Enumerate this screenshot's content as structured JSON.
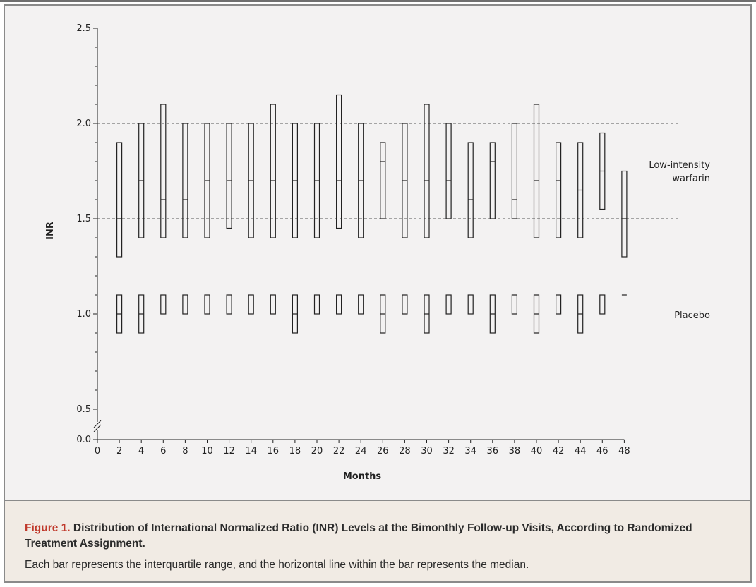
{
  "chart_data": {
    "type": "boxplot",
    "xlabel": "Months",
    "ylabel": "INR",
    "xlim": [
      0,
      48
    ],
    "ylim": [
      0.0,
      2.5
    ],
    "x_ticks": [
      0,
      2,
      4,
      6,
      8,
      10,
      12,
      14,
      16,
      18,
      20,
      22,
      24,
      26,
      28,
      30,
      32,
      34,
      36,
      38,
      40,
      42,
      44,
      46,
      48
    ],
    "y_ticks": [
      "0.0",
      "0.5",
      "1.0",
      "1.5",
      "2.0",
      "2.5"
    ],
    "y_tick_values": [
      0.0,
      0.5,
      1.0,
      1.5,
      2.0,
      2.5
    ],
    "axis_break": "between 0.0 and 0.5",
    "reference_lines": [
      1.5,
      2.0
    ],
    "series": [
      {
        "name": "Low-intensity warfarin",
        "label_lines": [
          "Low-intensity",
          "warfarin"
        ],
        "points": [
          {
            "x": 2,
            "q1": 1.3,
            "median": 1.5,
            "q3": 1.9
          },
          {
            "x": 4,
            "q1": 1.4,
            "median": 1.7,
            "q3": 2.0
          },
          {
            "x": 6,
            "q1": 1.4,
            "median": 1.6,
            "q3": 2.1
          },
          {
            "x": 8,
            "q1": 1.4,
            "median": 1.6,
            "q3": 2.0
          },
          {
            "x": 10,
            "q1": 1.4,
            "median": 1.7,
            "q3": 2.0
          },
          {
            "x": 12,
            "q1": 1.45,
            "median": 1.7,
            "q3": 2.0
          },
          {
            "x": 14,
            "q1": 1.4,
            "median": 1.7,
            "q3": 2.0
          },
          {
            "x": 16,
            "q1": 1.4,
            "median": 1.7,
            "q3": 2.1
          },
          {
            "x": 18,
            "q1": 1.4,
            "median": 1.7,
            "q3": 2.0
          },
          {
            "x": 20,
            "q1": 1.4,
            "median": 1.7,
            "q3": 2.0
          },
          {
            "x": 22,
            "q1": 1.45,
            "median": 1.7,
            "q3": 2.15
          },
          {
            "x": 24,
            "q1": 1.4,
            "median": 1.7,
            "q3": 2.0
          },
          {
            "x": 26,
            "q1": 1.5,
            "median": 1.8,
            "q3": 1.9
          },
          {
            "x": 28,
            "q1": 1.4,
            "median": 1.7,
            "q3": 2.0
          },
          {
            "x": 30,
            "q1": 1.4,
            "median": 1.7,
            "q3": 2.1
          },
          {
            "x": 32,
            "q1": 1.5,
            "median": 1.7,
            "q3": 2.0
          },
          {
            "x": 34,
            "q1": 1.4,
            "median": 1.6,
            "q3": 1.9
          },
          {
            "x": 36,
            "q1": 1.5,
            "median": 1.8,
            "q3": 1.9
          },
          {
            "x": 38,
            "q1": 1.5,
            "median": 1.6,
            "q3": 2.0
          },
          {
            "x": 40,
            "q1": 1.4,
            "median": 1.7,
            "q3": 2.1
          },
          {
            "x": 42,
            "q1": 1.4,
            "median": 1.7,
            "q3": 1.9
          },
          {
            "x": 44,
            "q1": 1.4,
            "median": 1.65,
            "q3": 1.9
          },
          {
            "x": 46,
            "q1": 1.55,
            "median": 1.75,
            "q3": 1.95
          },
          {
            "x": 48,
            "q1": 1.3,
            "median": 1.5,
            "q3": 1.75
          }
        ]
      },
      {
        "name": "Placebo",
        "label_lines": [
          "Placebo"
        ],
        "points": [
          {
            "x": 2,
            "q1": 0.9,
            "median": 1.0,
            "q3": 1.1
          },
          {
            "x": 4,
            "q1": 0.9,
            "median": 1.0,
            "q3": 1.1
          },
          {
            "x": 6,
            "q1": 1.0,
            "median": 1.0,
            "q3": 1.1
          },
          {
            "x": 8,
            "q1": 1.0,
            "median": 1.0,
            "q3": 1.1
          },
          {
            "x": 10,
            "q1": 1.0,
            "median": 1.0,
            "q3": 1.1
          },
          {
            "x": 12,
            "q1": 1.0,
            "median": 1.0,
            "q3": 1.1
          },
          {
            "x": 14,
            "q1": 1.0,
            "median": 1.0,
            "q3": 1.1
          },
          {
            "x": 16,
            "q1": 1.0,
            "median": 1.0,
            "q3": 1.1
          },
          {
            "x": 18,
            "q1": 0.9,
            "median": 1.0,
            "q3": 1.1
          },
          {
            "x": 20,
            "q1": 1.0,
            "median": 1.0,
            "q3": 1.1
          },
          {
            "x": 22,
            "q1": 1.0,
            "median": 1.0,
            "q3": 1.1
          },
          {
            "x": 24,
            "q1": 1.0,
            "median": 1.0,
            "q3": 1.1
          },
          {
            "x": 26,
            "q1": 0.9,
            "median": 1.0,
            "q3": 1.1
          },
          {
            "x": 28,
            "q1": 1.0,
            "median": 1.0,
            "q3": 1.1
          },
          {
            "x": 30,
            "q1": 0.9,
            "median": 1.0,
            "q3": 1.1
          },
          {
            "x": 32,
            "q1": 1.0,
            "median": 1.0,
            "q3": 1.1
          },
          {
            "x": 34,
            "q1": 1.0,
            "median": 1.0,
            "q3": 1.1
          },
          {
            "x": 36,
            "q1": 0.9,
            "median": 1.0,
            "q3": 1.1
          },
          {
            "x": 38,
            "q1": 1.0,
            "median": 1.0,
            "q3": 1.1
          },
          {
            "x": 40,
            "q1": 0.9,
            "median": 1.0,
            "q3": 1.1
          },
          {
            "x": 42,
            "q1": 1.0,
            "median": 1.0,
            "q3": 1.1
          },
          {
            "x": 44,
            "q1": 0.9,
            "median": 1.0,
            "q3": 1.1
          },
          {
            "x": 46,
            "q1": 1.0,
            "median": 1.0,
            "q3": 1.1
          },
          {
            "x": 48,
            "q1": 1.1,
            "median": 1.1,
            "q3": 1.1
          }
        ]
      }
    ]
  },
  "caption": {
    "figure_label": "Figure 1.",
    "title": "Distribution of International Normalized Ratio (INR) Levels at the Bimonthly Follow-up Visits, According to Randomized Treatment Assignment.",
    "text": "Each bar represents the interquartile range, and the horizontal line within the bar represents the median."
  },
  "colors": {
    "panel_background": "#f3f2f2",
    "caption_background": "#f1ebe4",
    "figure_label": "#c0392b",
    "ink": "#222222"
  }
}
